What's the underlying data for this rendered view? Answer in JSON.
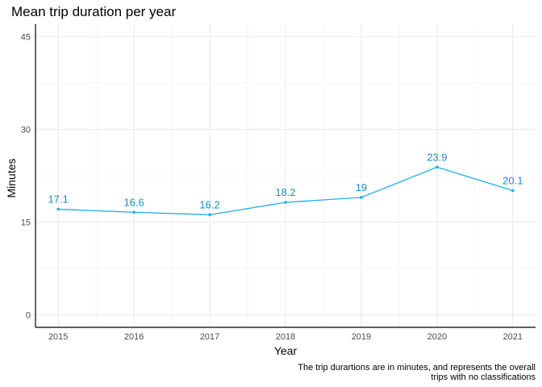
{
  "chart_data": {
    "type": "line",
    "title": "Mean trip duration per year",
    "xlabel": "Year",
    "ylabel": "Minutes",
    "x": [
      2015,
      2016,
      2017,
      2018,
      2019,
      2020,
      2021
    ],
    "series": [
      {
        "values": [
          17.1,
          16.6,
          16.2,
          18.2,
          19,
          23.9,
          20.1
        ],
        "labels": [
          "17.1",
          "16.6",
          "16.2",
          "18.2",
          "19",
          "23.9",
          "20.1"
        ]
      }
    ],
    "y_ticks": [
      0,
      15,
      30,
      45
    ],
    "y_tick_labels": [
      "0",
      "15",
      "30",
      "45"
    ],
    "x_tick_labels": [
      "2015",
      "2016",
      "2017",
      "2018",
      "2019",
      "2020",
      "2021"
    ],
    "ylim": [
      -2,
      47
    ],
    "xlim": [
      2014.7,
      2021.3
    ],
    "grid": true,
    "legend": "none",
    "caption": [
      "The trip durartions are in minutes, and represents the overall",
      "trips with no classifications"
    ]
  },
  "colors": {
    "line": "#1AAFE8",
    "label": "#1A8BC4",
    "grid_major": "#EBEBEB",
    "grid_minor": "#F5F5F5",
    "axis": "#000000"
  }
}
